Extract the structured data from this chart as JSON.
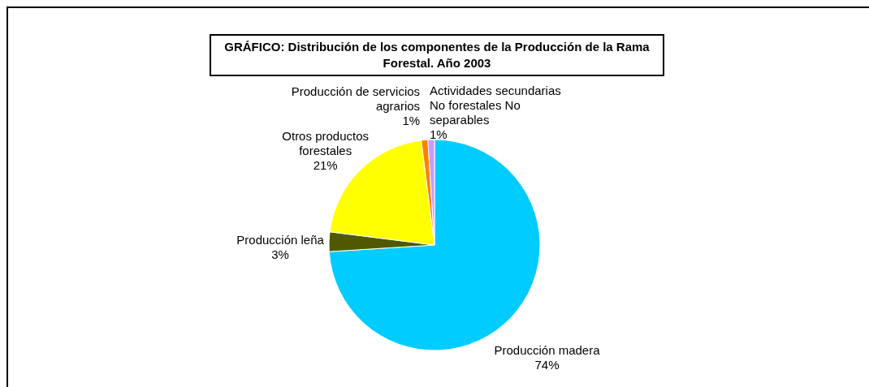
{
  "chart_data": {
    "type": "pie",
    "title": "GRÁFICO: Distribución de los componentes de la Producción de la Rama Forestal. Año 2003",
    "categories": [
      "Producción madera",
      "Producción leña",
      "Otros productos forestales",
      "Producción de servicios agrarios",
      "Actividades secundarias No forestales No separables"
    ],
    "values": [
      74,
      3,
      21,
      1,
      1
    ],
    "value_labels": [
      "74%",
      "3%",
      "21%",
      "1%",
      "1%"
    ],
    "colors": [
      "#00ccff",
      "#4f5a00",
      "#ffff00",
      "#ff8000",
      "#cc99ff"
    ],
    "legend": false
  }
}
